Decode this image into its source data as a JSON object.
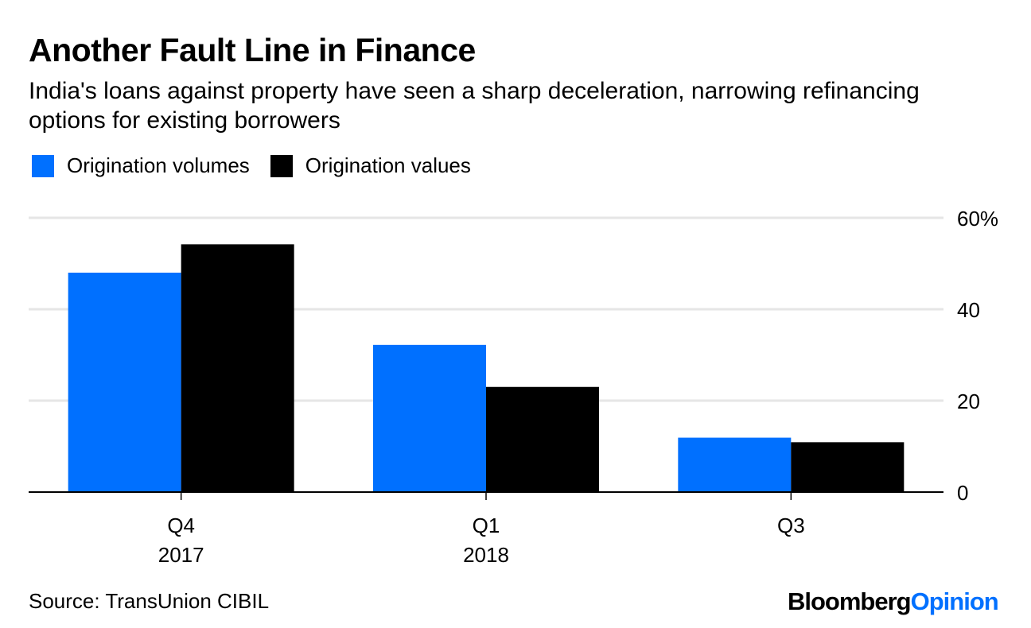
{
  "header": {
    "title": "Another Fault Line in Finance",
    "subtitle": "India's loans against property have seen a sharp deceleration, narrowing refinancing options for existing borrowers"
  },
  "footer": {
    "source": "Source: TransUnion CIBIL",
    "brand_primary": "Bloomberg",
    "brand_secondary": "Opinion"
  },
  "colors": {
    "volumes": "#0070ff",
    "values": "#000000",
    "grid": "#e6e6e6",
    "brand_accent": "#0070ff"
  },
  "chart_data": {
    "type": "bar",
    "title": "Another Fault Line in Finance",
    "xlabel": "",
    "ylabel": "",
    "categories": [
      "Q4 2017",
      "Q1 2018",
      "Q3"
    ],
    "category_labels": [
      {
        "quarter": "Q4",
        "year": "2017"
      },
      {
        "quarter": "Q1",
        "year": "2018"
      },
      {
        "quarter": "Q3",
        "year": ""
      }
    ],
    "series": [
      {
        "name": "Origination volumes",
        "color": "#0070ff",
        "values": [
          48,
          32.2,
          11.9
        ]
      },
      {
        "name": "Origination values",
        "color": "#000000",
        "values": [
          54.2,
          23,
          10.9
        ]
      }
    ],
    "ylim": [
      0,
      60
    ],
    "yticks": [
      0,
      20,
      40,
      60
    ],
    "ytick_labels": [
      "0",
      "20",
      "40",
      "60%"
    ],
    "y_axis_side": "right",
    "grid": true,
    "legend_position": "top-left"
  }
}
